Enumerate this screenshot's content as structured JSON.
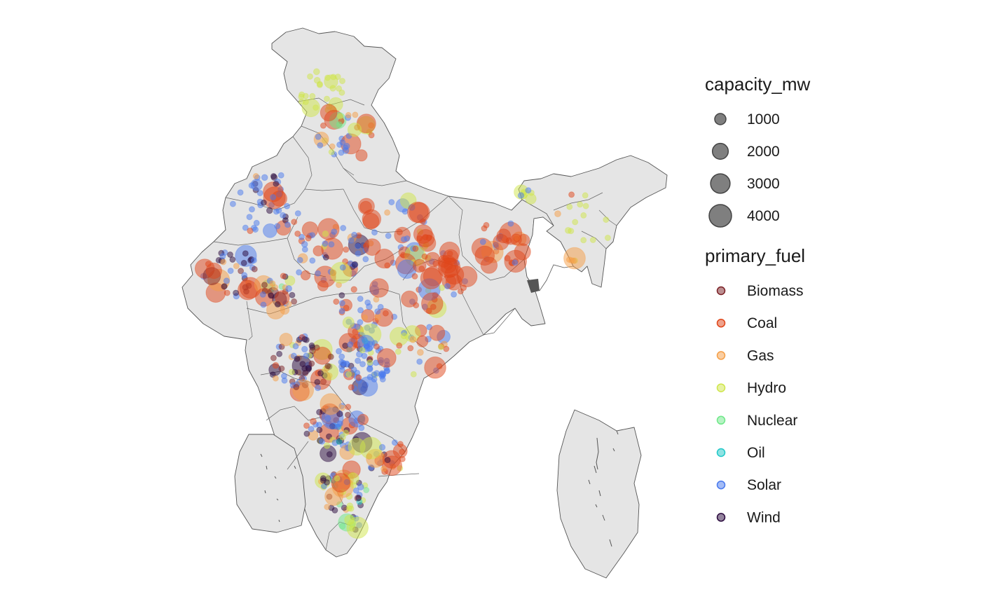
{
  "legend": {
    "size_title": "capacity_mw",
    "size_entries": [
      {
        "label": "1000",
        "value": 1000
      },
      {
        "label": "2000",
        "value": 2000
      },
      {
        "label": "3000",
        "value": 3000
      },
      {
        "label": "4000",
        "value": 4000
      }
    ],
    "color_title": "primary_fuel",
    "color_entries": [
      {
        "label": "Biomass",
        "color": "#7a1f24"
      },
      {
        "label": "Coal",
        "color": "#e0461a"
      },
      {
        "label": "Gas",
        "color": "#f59e45"
      },
      {
        "label": "Hydro",
        "color": "#cfe64a"
      },
      {
        "label": "Nuclear",
        "color": "#6fe889"
      },
      {
        "label": "Oil",
        "color": "#1fc8c8"
      },
      {
        "label": "Solar",
        "color": "#4a7aee"
      },
      {
        "label": "Wind",
        "color": "#2a0a3d"
      }
    ]
  },
  "map": {
    "land_color": "#e5e5e5",
    "border_color": "#555555",
    "point_alpha": 0.5
  }
}
